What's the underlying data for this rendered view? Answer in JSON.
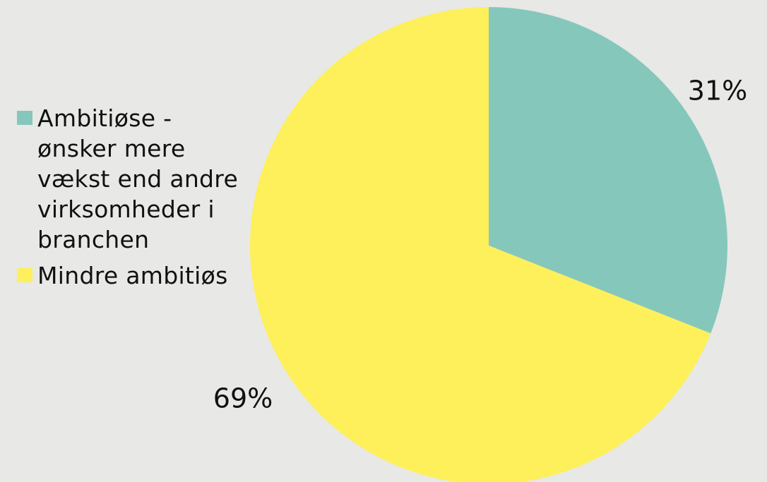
{
  "chart_data": {
    "type": "pie",
    "slices": [
      {
        "label": "Ambitiøse - ønsker mere vækst end andre virksomheder i branchen",
        "value": 31,
        "display": "31%",
        "color": "#86c7bc"
      },
      {
        "label": "Mindre ambitiøs",
        "value": 69,
        "display": "69%",
        "color": "#fdf05a"
      }
    ],
    "start_angle": "12 o'clock",
    "direction": "clockwise",
    "legend_position": "left"
  },
  "background": "#e8e8e6"
}
